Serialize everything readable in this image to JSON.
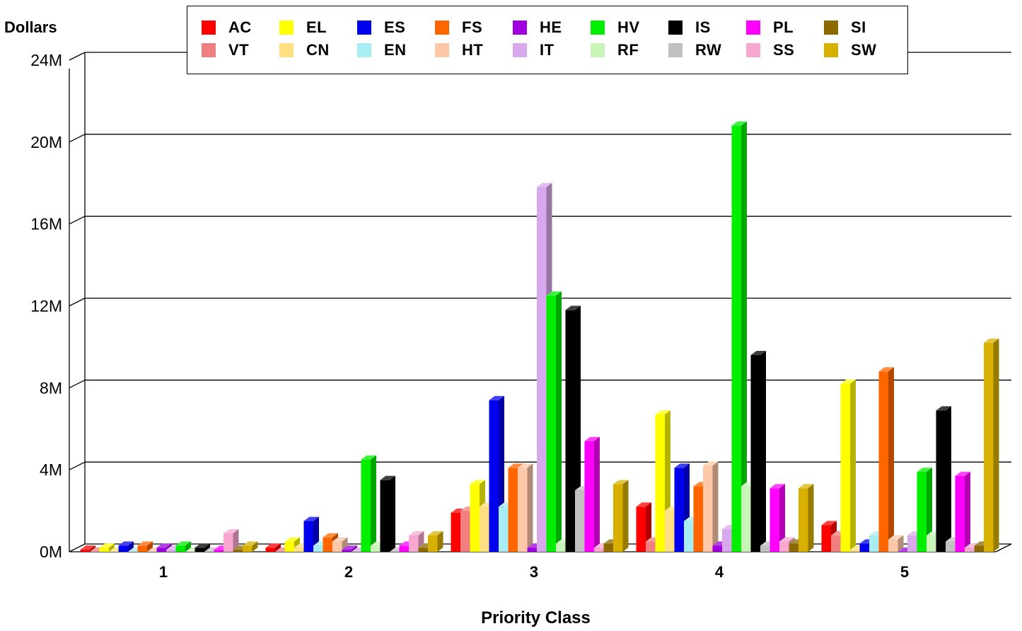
{
  "chart_data": {
    "type": "bar",
    "style": "3d-clustered-column",
    "title": "",
    "xlabel": "Priority Class",
    "ylabel": "Dollars",
    "ylim": [
      0,
      24000000
    ],
    "yticks": [
      "0M",
      "4M",
      "8M",
      "12M",
      "16M",
      "20M",
      "24M"
    ],
    "ytick_values": [
      0,
      4000000,
      8000000,
      12000000,
      16000000,
      20000000,
      24000000
    ],
    "grid": true,
    "legend_position": "top",
    "categories": [
      "1",
      "2",
      "3",
      "4",
      "5"
    ],
    "series": [
      {
        "name": "AC",
        "color": "#ff0000",
        "values": [
          100000,
          200000,
          1900000,
          2200000,
          1300000
        ]
      },
      {
        "name": "VT",
        "color": "#f08080",
        "values": [
          0,
          0,
          2000000,
          500000,
          800000
        ]
      },
      {
        "name": "EL",
        "color": "#ffff00",
        "values": [
          200000,
          500000,
          3300000,
          6700000,
          8200000
        ]
      },
      {
        "name": "CN",
        "color": "#ffe080",
        "values": [
          0,
          200000,
          2200000,
          2000000,
          100000
        ]
      },
      {
        "name": "ES",
        "color": "#0000ee",
        "values": [
          300000,
          1500000,
          7400000,
          4100000,
          400000
        ]
      },
      {
        "name": "EN",
        "color": "#a8ecf4",
        "values": [
          0,
          300000,
          2200000,
          1500000,
          800000
        ]
      },
      {
        "name": "FS",
        "color": "#ff6600",
        "values": [
          300000,
          700000,
          4100000,
          3200000,
          8800000
        ]
      },
      {
        "name": "HT",
        "color": "#fcc8a8",
        "values": [
          0,
          500000,
          4100000,
          4200000,
          600000
        ]
      },
      {
        "name": "HE",
        "color": "#a000e0",
        "values": [
          200000,
          100000,
          200000,
          300000,
          0
        ]
      },
      {
        "name": "IT",
        "color": "#d8a8ec",
        "values": [
          100000,
          0,
          17800000,
          1100000,
          800000
        ]
      },
      {
        "name": "HV",
        "color": "#00ee00",
        "values": [
          300000,
          4500000,
          12500000,
          20800000,
          3900000
        ]
      },
      {
        "name": "RF",
        "color": "#c8f4b8",
        "values": [
          0,
          300000,
          400000,
          3200000,
          800000
        ]
      },
      {
        "name": "IS",
        "color": "#000000",
        "values": [
          200000,
          3500000,
          11800000,
          9600000,
          6900000
        ]
      },
      {
        "name": "RW",
        "color": "#c0c0c0",
        "values": [
          0,
          0,
          3000000,
          300000,
          500000
        ]
      },
      {
        "name": "PL",
        "color": "#ff00ff",
        "values": [
          100000,
          300000,
          5400000,
          3100000,
          3700000
        ]
      },
      {
        "name": "SS",
        "color": "#f8a8d0",
        "values": [
          900000,
          800000,
          200000,
          500000,
          200000
        ]
      },
      {
        "name": "SI",
        "color": "#8c6a00",
        "values": [
          100000,
          200000,
          400000,
          400000,
          300000
        ]
      },
      {
        "name": "SW",
        "color": "#d8b000",
        "values": [
          300000,
          800000,
          3300000,
          3100000,
          10200000
        ]
      }
    ]
  },
  "legend_order": [
    "AC",
    "EL",
    "ES",
    "FS",
    "HE",
    "HV",
    "IS",
    "PL",
    "SI",
    "VT",
    "CN",
    "EN",
    "HT",
    "IT",
    "RF",
    "RW",
    "SS",
    "SW"
  ]
}
